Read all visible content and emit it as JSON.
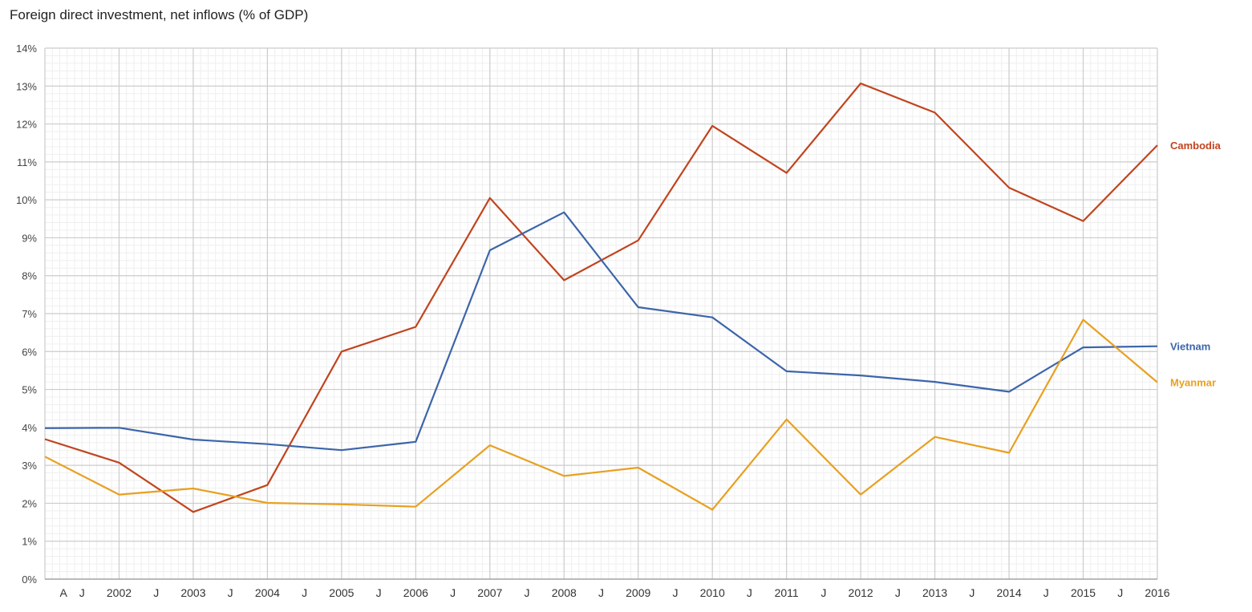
{
  "chart_data": {
    "type": "line",
    "title": "Foreign direct investment, net inflows (% of GDP)",
    "xlabel": "",
    "ylabel": "",
    "ylim": [
      0,
      14
    ],
    "yticks": [
      "0%",
      "1%",
      "2%",
      "3%",
      "4%",
      "5%",
      "6%",
      "7%",
      "8%",
      "9%",
      "10%",
      "11%",
      "12%",
      "13%",
      "14%"
    ],
    "x_range": [
      2001,
      2016
    ],
    "x_ticks": [
      {
        "x": 2001.25,
        "label": "A"
      },
      {
        "x": 2001.5,
        "label": "J"
      },
      {
        "x": 2002,
        "label": "2002"
      },
      {
        "x": 2002.5,
        "label": "J"
      },
      {
        "x": 2003,
        "label": "2003"
      },
      {
        "x": 2003.5,
        "label": "J"
      },
      {
        "x": 2004,
        "label": "2004"
      },
      {
        "x": 2004.5,
        "label": "J"
      },
      {
        "x": 2005,
        "label": "2005"
      },
      {
        "x": 2005.5,
        "label": "J"
      },
      {
        "x": 2006,
        "label": "2006"
      },
      {
        "x": 2006.5,
        "label": "J"
      },
      {
        "x": 2007,
        "label": "2007"
      },
      {
        "x": 2007.5,
        "label": "J"
      },
      {
        "x": 2008,
        "label": "2008"
      },
      {
        "x": 2008.5,
        "label": "J"
      },
      {
        "x": 2009,
        "label": "2009"
      },
      {
        "x": 2009.5,
        "label": "J"
      },
      {
        "x": 2010,
        "label": "2010"
      },
      {
        "x": 2010.5,
        "label": "J"
      },
      {
        "x": 2011,
        "label": "2011"
      },
      {
        "x": 2011.5,
        "label": "J"
      },
      {
        "x": 2012,
        "label": "2012"
      },
      {
        "x": 2012.5,
        "label": "J"
      },
      {
        "x": 2013,
        "label": "2013"
      },
      {
        "x": 2013.5,
        "label": "J"
      },
      {
        "x": 2014,
        "label": "2014"
      },
      {
        "x": 2014.5,
        "label": "J"
      },
      {
        "x": 2015,
        "label": "2015"
      },
      {
        "x": 2015.5,
        "label": "J"
      },
      {
        "x": 2016,
        "label": "2016"
      }
    ],
    "grid": true,
    "legend": "series labels at right end",
    "x": [
      2001,
      2002,
      2003,
      2004,
      2005,
      2006,
      2007,
      2008,
      2009,
      2010,
      2011,
      2012,
      2013,
      2014,
      2015,
      2016
    ],
    "series": [
      {
        "name": "Cambodia",
        "color": "#c1441e",
        "values": [
          3.69,
          3.07,
          1.77,
          2.48,
          6.0,
          6.65,
          10.05,
          7.88,
          8.93,
          11.95,
          10.71,
          13.07,
          12.3,
          10.32,
          9.44,
          11.44
        ]
      },
      {
        "name": "Vietnam",
        "color": "#3c65aa",
        "values": [
          3.98,
          3.99,
          3.68,
          3.56,
          3.4,
          3.62,
          8.67,
          9.67,
          7.17,
          6.9,
          5.48,
          5.37,
          5.2,
          4.94,
          6.11,
          6.14
        ]
      },
      {
        "name": "Myanmar",
        "color": "#e8a020",
        "values": [
          3.23,
          2.23,
          2.39,
          2.01,
          1.97,
          1.91,
          3.53,
          2.72,
          2.94,
          1.83,
          4.21,
          2.23,
          3.75,
          3.33,
          6.84,
          5.19
        ]
      }
    ]
  }
}
